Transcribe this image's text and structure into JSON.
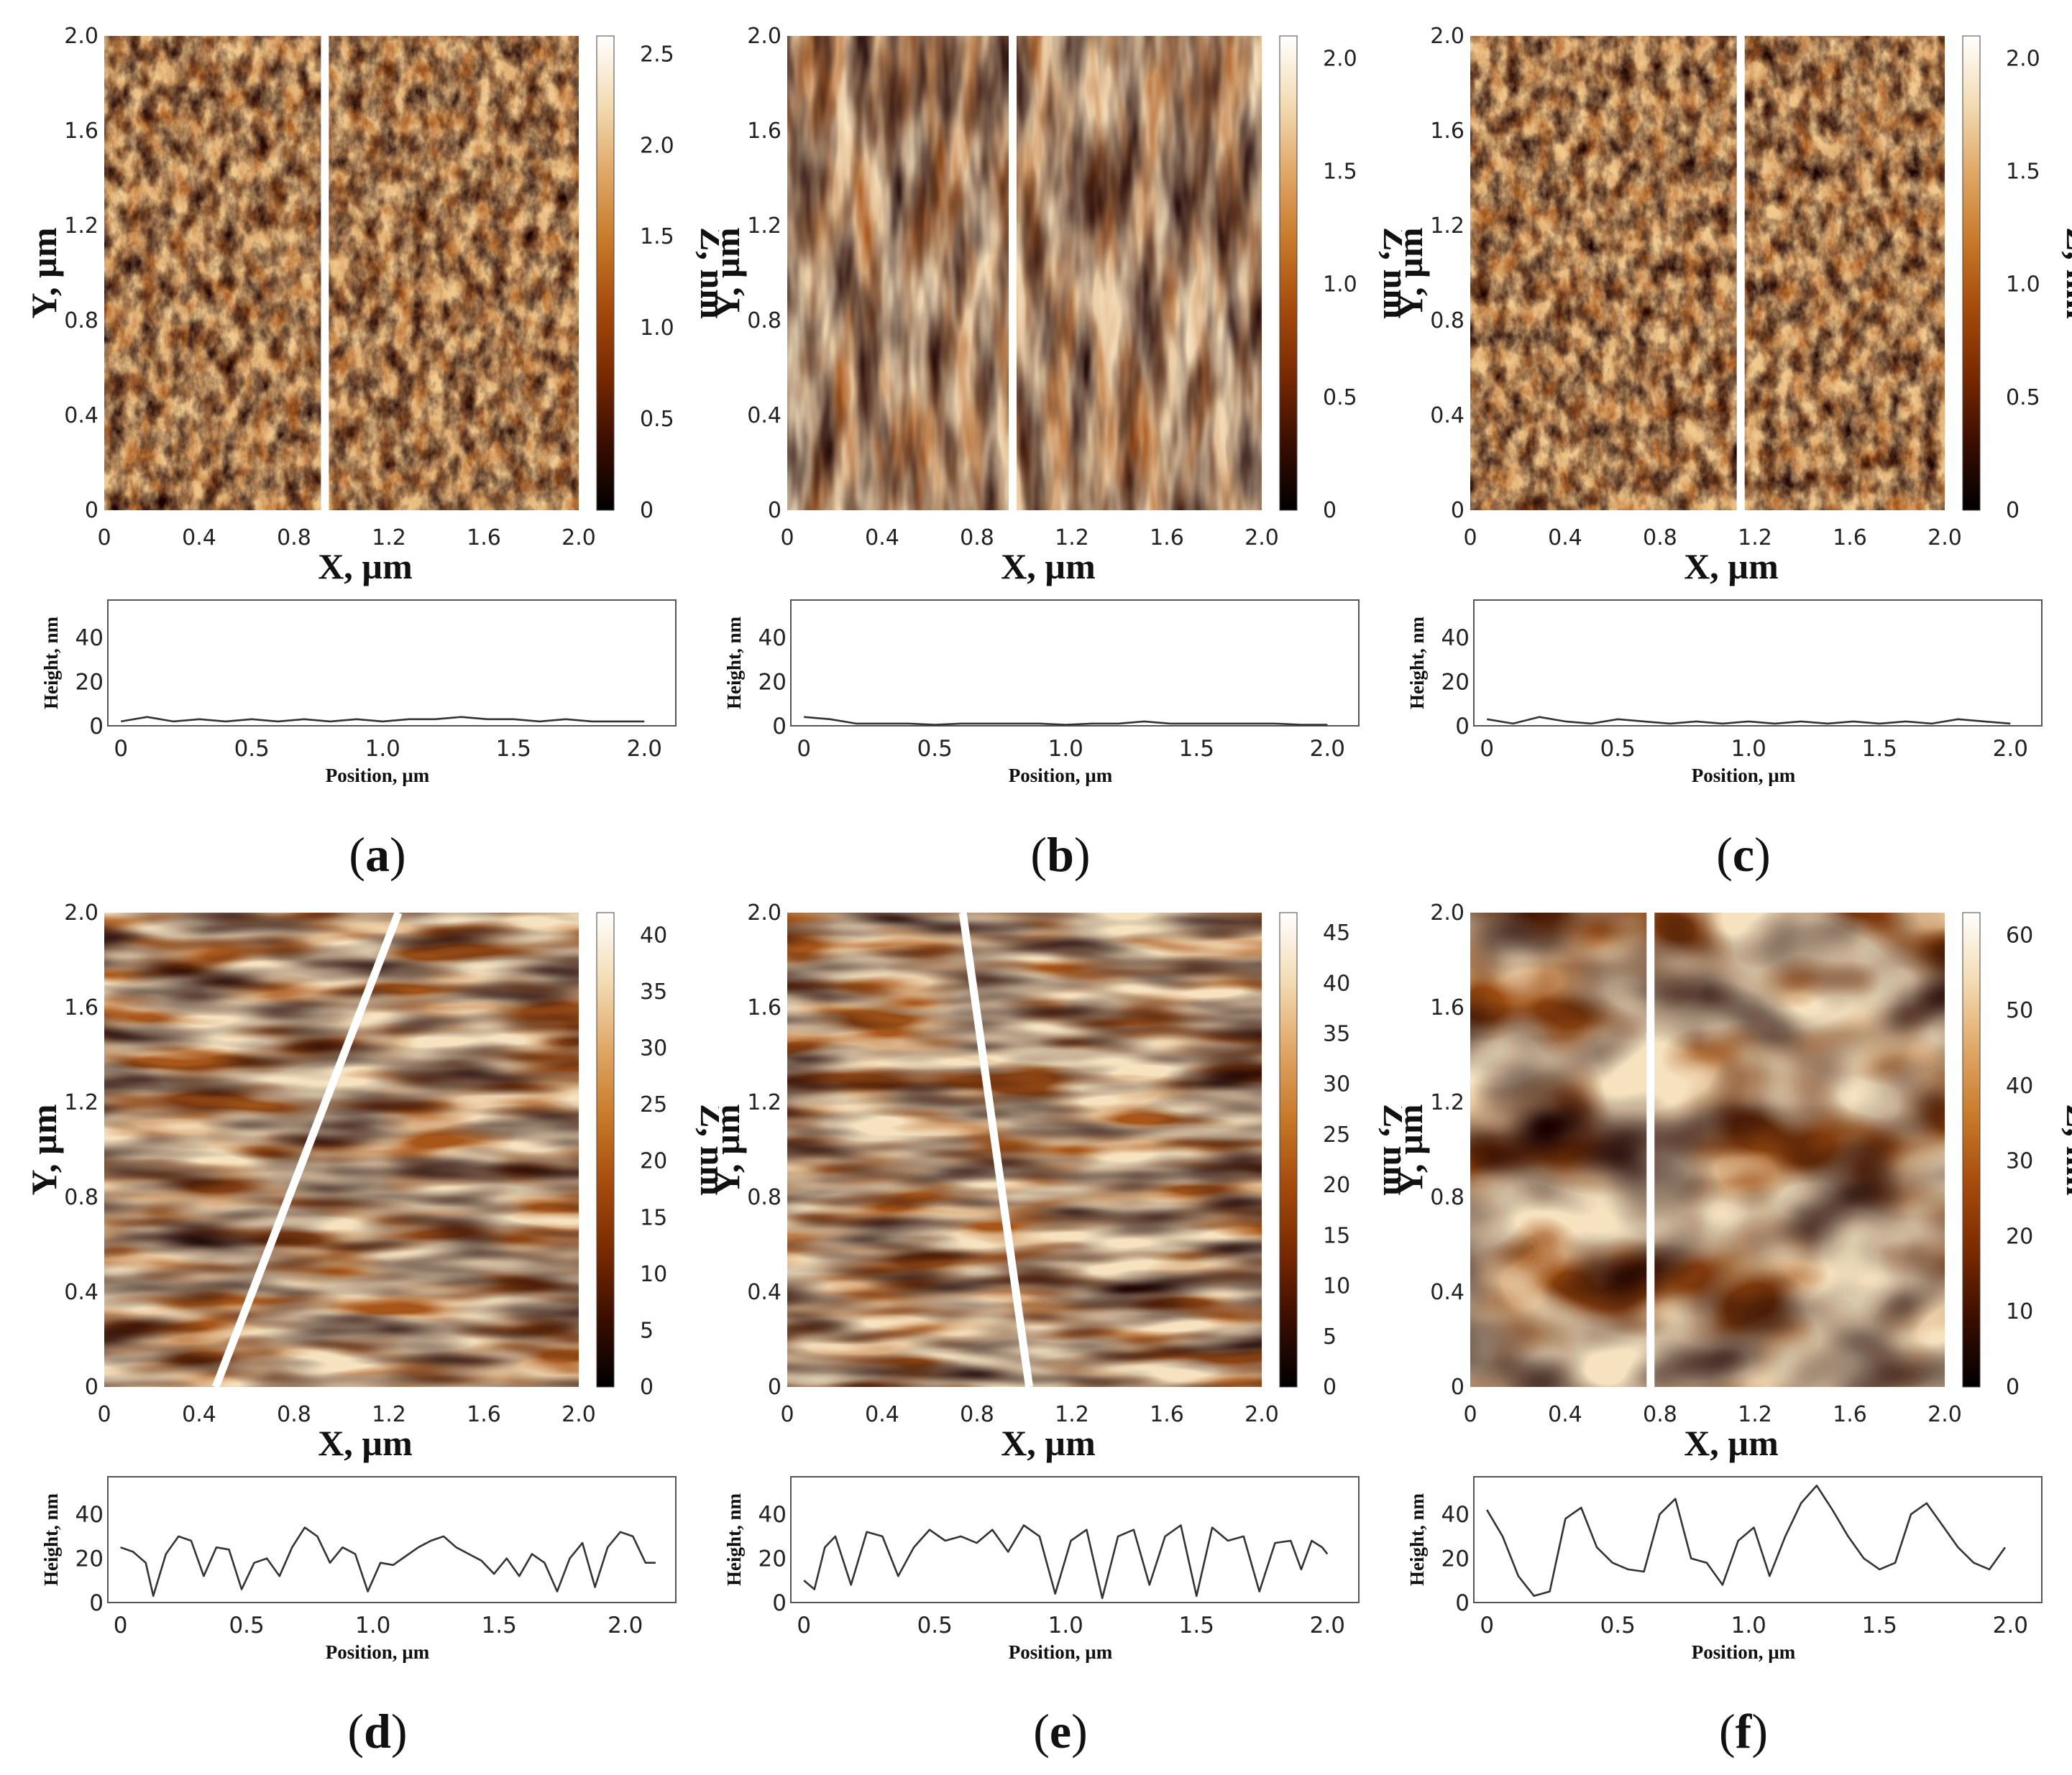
{
  "chart_data": [
    {
      "id": "a",
      "type": "heatmap",
      "panel_label": "a",
      "xlabel": "X, µm",
      "ylabel": "Y, µm",
      "zlabel": "Z, nm",
      "xlim": [
        0,
        2.0
      ],
      "ylim": [
        0,
        2.0
      ],
      "x_ticks": [
        "0",
        "0.4",
        "0.8",
        "1.2",
        "1.6",
        "2.0"
      ],
      "y_ticks": [
        "0",
        "0.4",
        "0.8",
        "1.2",
        "1.6",
        "2.0"
      ],
      "z_ticks": [
        "0",
        "0.5",
        "1.0",
        "1.5",
        "2.0",
        "2.5"
      ],
      "zlim": [
        0,
        2.6
      ],
      "texture": "fine",
      "profile_line": {
        "x_start": 0.93,
        "x_end": 0.93
      },
      "profile": {
        "xlabel": "Position, µm",
        "ylabel": "Height, nm",
        "x_ticks": [
          "0",
          "0.5",
          "1.0",
          "1.5",
          "2.0"
        ],
        "y_ticks": [
          "0",
          "20",
          "40"
        ],
        "xlim": [
          -0.05,
          2.12
        ],
        "ylim": [
          0,
          57
        ],
        "x": [
          0.0,
          0.1,
          0.2,
          0.3,
          0.4,
          0.5,
          0.6,
          0.7,
          0.8,
          0.9,
          1.0,
          1.1,
          1.2,
          1.3,
          1.4,
          1.5,
          1.6,
          1.7,
          1.8,
          1.9,
          2.0
        ],
        "y": [
          2,
          4,
          2,
          3,
          2,
          3,
          2,
          3,
          2,
          3,
          2,
          3,
          3,
          4,
          3,
          3,
          2,
          3,
          2,
          2,
          2
        ]
      }
    },
    {
      "id": "b",
      "type": "heatmap",
      "panel_label": "b",
      "xlabel": "X, µm",
      "ylabel": "Y, µm",
      "zlabel": "Z, nm",
      "xlim": [
        0,
        2.0
      ],
      "ylim": [
        0,
        2.0
      ],
      "x_ticks": [
        "0",
        "0.4",
        "0.8",
        "1.2",
        "1.6",
        "2.0"
      ],
      "y_ticks": [
        "0",
        "0.4",
        "0.8",
        "1.2",
        "1.6",
        "2.0"
      ],
      "z_ticks": [
        "0",
        "0.5",
        "1.0",
        "1.5",
        "2.0"
      ],
      "zlim": [
        0,
        2.1
      ],
      "texture": "streaks",
      "profile_line": {
        "x_start": 0.95,
        "x_end": 0.95
      },
      "profile": {
        "xlabel": "Position, µm",
        "ylabel": "Height, nm",
        "x_ticks": [
          "0",
          "0.5",
          "1.0",
          "1.5",
          "2.0"
        ],
        "y_ticks": [
          "0",
          "20",
          "40"
        ],
        "xlim": [
          -0.05,
          2.12
        ],
        "ylim": [
          0,
          57
        ],
        "x": [
          0.0,
          0.1,
          0.2,
          0.3,
          0.4,
          0.5,
          0.6,
          0.7,
          0.8,
          0.9,
          1.0,
          1.1,
          1.2,
          1.3,
          1.4,
          1.5,
          1.6,
          1.7,
          1.8,
          1.9,
          2.0
        ],
        "y": [
          4,
          3,
          1,
          1,
          1,
          0.5,
          1,
          1,
          1,
          1,
          0.5,
          1,
          1,
          2,
          1,
          1,
          1,
          1,
          1,
          0.5,
          0.5
        ]
      }
    },
    {
      "id": "c",
      "type": "heatmap",
      "panel_label": "c",
      "xlabel": "X, µm",
      "ylabel": "Y, µm",
      "zlabel": "Z, nm",
      "xlim": [
        0,
        2.0
      ],
      "ylim": [
        0,
        2.0
      ],
      "x_ticks": [
        "0",
        "0.4",
        "0.8",
        "1.2",
        "1.6",
        "2.0"
      ],
      "y_ticks": [
        "0",
        "0.4",
        "0.8",
        "1.2",
        "1.6",
        "2.0"
      ],
      "z_ticks": [
        "0",
        "0.5",
        "1.0",
        "1.5",
        "2.0"
      ],
      "zlim": [
        0,
        2.1
      ],
      "texture": "fine",
      "profile_line": {
        "x_start": 1.14,
        "x_end": 1.14
      },
      "profile": {
        "xlabel": "Position, µm",
        "ylabel": "Height, nm",
        "x_ticks": [
          "0",
          "0.5",
          "1.0",
          "1.5",
          "2.0"
        ],
        "y_ticks": [
          "0",
          "20",
          "40"
        ],
        "xlim": [
          -0.05,
          2.12
        ],
        "ylim": [
          0,
          57
        ],
        "x": [
          0.0,
          0.1,
          0.2,
          0.3,
          0.4,
          0.5,
          0.6,
          0.7,
          0.8,
          0.9,
          1.0,
          1.1,
          1.2,
          1.3,
          1.4,
          1.5,
          1.6,
          1.7,
          1.8,
          1.9,
          2.0
        ],
        "y": [
          3,
          1,
          4,
          2,
          1,
          3,
          2,
          1,
          2,
          1,
          2,
          1,
          2,
          1,
          2,
          1,
          2,
          1,
          3,
          2,
          1
        ]
      }
    },
    {
      "id": "d",
      "type": "heatmap",
      "panel_label": "d",
      "xlabel": "X, µm",
      "ylabel": "Y, µm",
      "zlabel": "Z, nm",
      "xlim": [
        0,
        2.0
      ],
      "ylim": [
        0,
        2.0
      ],
      "x_ticks": [
        "0",
        "0.4",
        "0.8",
        "1.2",
        "1.6",
        "2.0"
      ],
      "y_ticks": [
        "0",
        "0.4",
        "0.8",
        "1.2",
        "1.6",
        "2.0"
      ],
      "z_ticks": [
        "0",
        "5",
        "10",
        "15",
        "20",
        "25",
        "30",
        "35",
        "40"
      ],
      "zlim": [
        0,
        42
      ],
      "texture": "stripes",
      "profile_line": {
        "x_start": 0.47,
        "x_end": 1.24
      },
      "profile": {
        "xlabel": "Position, µm",
        "ylabel": "Height, nm",
        "x_ticks": [
          "0",
          "0.5",
          "1.0",
          "1.5",
          "2.0"
        ],
        "y_ticks": [
          "0",
          "20",
          "40"
        ],
        "xlim": [
          -0.05,
          2.2
        ],
        "ylim": [
          0,
          57
        ],
        "x": [
          0.0,
          0.05,
          0.1,
          0.13,
          0.18,
          0.23,
          0.28,
          0.33,
          0.38,
          0.43,
          0.48,
          0.53,
          0.58,
          0.63,
          0.68,
          0.73,
          0.78,
          0.83,
          0.88,
          0.93,
          0.98,
          1.03,
          1.08,
          1.13,
          1.18,
          1.23,
          1.28,
          1.33,
          1.38,
          1.43,
          1.48,
          1.53,
          1.58,
          1.63,
          1.68,
          1.73,
          1.78,
          1.83,
          1.88,
          1.93,
          1.98,
          2.03,
          2.08,
          2.12
        ],
        "y": [
          25,
          23,
          18,
          3,
          22,
          30,
          28,
          12,
          25,
          24,
          6,
          18,
          20,
          12,
          25,
          34,
          30,
          18,
          25,
          22,
          5,
          18,
          17,
          21,
          25,
          28,
          30,
          25,
          22,
          19,
          13,
          20,
          12,
          22,
          18,
          5,
          20,
          27,
          7,
          25,
          32,
          30,
          18,
          18
        ]
      }
    },
    {
      "id": "e",
      "type": "heatmap",
      "panel_label": "e",
      "xlabel": "X, µm",
      "ylabel": "Y, µm",
      "zlabel": "Z, nm",
      "xlim": [
        0,
        2.0
      ],
      "ylim": [
        0,
        2.0
      ],
      "x_ticks": [
        "0",
        "0.4",
        "0.8",
        "1.2",
        "1.6",
        "2.0"
      ],
      "y_ticks": [
        "0",
        "0.4",
        "0.8",
        "1.2",
        "1.6",
        "2.0"
      ],
      "z_ticks": [
        "0",
        "5",
        "10",
        "15",
        "20",
        "25",
        "30",
        "35",
        "40",
        "45"
      ],
      "zlim": [
        0,
        47
      ],
      "texture": "stripes",
      "profile_line": {
        "x_start": 1.02,
        "x_end": 0.74
      },
      "profile": {
        "xlabel": "Position, µm",
        "ylabel": "Height, nm",
        "x_ticks": [
          "0",
          "0.5",
          "1.0",
          "1.5",
          "2.0"
        ],
        "y_ticks": [
          "0",
          "20",
          "40"
        ],
        "xlim": [
          -0.05,
          2.12
        ],
        "ylim": [
          0,
          57
        ],
        "x": [
          0.0,
          0.04,
          0.08,
          0.12,
          0.18,
          0.24,
          0.3,
          0.36,
          0.42,
          0.48,
          0.54,
          0.6,
          0.66,
          0.72,
          0.78,
          0.84,
          0.9,
          0.96,
          1.02,
          1.08,
          1.14,
          1.2,
          1.26,
          1.32,
          1.38,
          1.44,
          1.5,
          1.56,
          1.62,
          1.68,
          1.74,
          1.8,
          1.86,
          1.9,
          1.94,
          1.98,
          2.0
        ],
        "y": [
          10,
          6,
          25,
          30,
          8,
          32,
          30,
          12,
          25,
          33,
          28,
          30,
          27,
          33,
          23,
          35,
          30,
          4,
          28,
          33,
          2,
          30,
          33,
          8,
          30,
          35,
          3,
          34,
          28,
          30,
          5,
          27,
          28,
          15,
          28,
          25,
          22
        ]
      }
    },
    {
      "id": "f",
      "type": "heatmap",
      "panel_label": "f",
      "xlabel": "X, µm",
      "ylabel": "Y, µm",
      "zlabel": "Z, nm",
      "xlim": [
        0,
        2.0
      ],
      "ylim": [
        0,
        2.0
      ],
      "x_ticks": [
        "0",
        "0.4",
        "0.8",
        "1.2",
        "1.6",
        "2.0"
      ],
      "y_ticks": [
        "0",
        "0.4",
        "0.8",
        "1.2",
        "1.6",
        "2.0"
      ],
      "z_ticks": [
        "0",
        "10",
        "20",
        "30",
        "40",
        "50",
        "60"
      ],
      "zlim": [
        0,
        63
      ],
      "texture": "blobs",
      "profile_line": {
        "x_start": 0.76,
        "x_end": 0.76
      },
      "profile": {
        "xlabel": "Position, µm",
        "ylabel": "Height, nm",
        "x_ticks": [
          "0",
          "0.5",
          "1.0",
          "1.5",
          "2.0"
        ],
        "y_ticks": [
          "0",
          "20",
          "40"
        ],
        "xlim": [
          -0.05,
          2.12
        ],
        "ylim": [
          0,
          57
        ],
        "x": [
          0.0,
          0.06,
          0.12,
          0.18,
          0.24,
          0.3,
          0.36,
          0.42,
          0.48,
          0.54,
          0.6,
          0.66,
          0.72,
          0.78,
          0.84,
          0.9,
          0.96,
          1.02,
          1.08,
          1.14,
          1.2,
          1.26,
          1.32,
          1.38,
          1.44,
          1.5,
          1.56,
          1.62,
          1.68,
          1.74,
          1.8,
          1.86,
          1.92,
          1.98
        ],
        "y": [
          42,
          30,
          12,
          3,
          5,
          38,
          43,
          25,
          18,
          15,
          14,
          40,
          47,
          20,
          18,
          8,
          28,
          34,
          12,
          30,
          45,
          53,
          42,
          30,
          20,
          15,
          18,
          40,
          45,
          35,
          25,
          18,
          15,
          25
        ]
      }
    }
  ],
  "colors": {
    "colormap": [
      "#000000",
      "#3a0d00",
      "#7a2a00",
      "#a64b0c",
      "#c87a2a",
      "#e0a868",
      "#f3dcb4",
      "#ffffff"
    ]
  }
}
